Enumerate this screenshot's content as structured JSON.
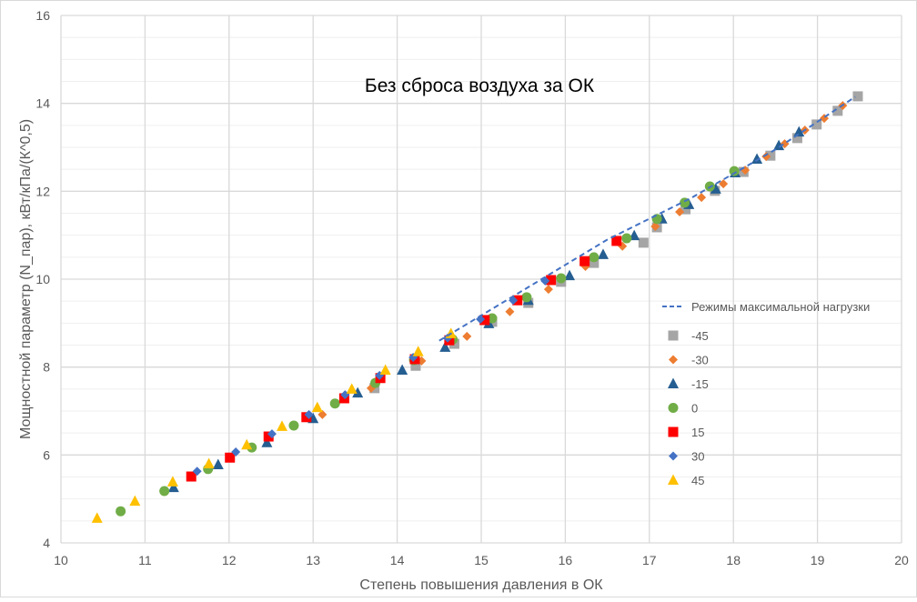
{
  "chart_data": {
    "type": "scatter",
    "title": "Без сброса воздуха за ОК",
    "xlabel": "Степень повышения давления в ОК",
    "ylabel": "Мощностной параметр (N_пар), кВт/кПа/(К^0,5)",
    "xlim": [
      10,
      20
    ],
    "ylim": [
      4,
      16
    ],
    "x_ticks": [
      "10",
      "11",
      "12",
      "13",
      "14",
      "15",
      "16",
      "17",
      "18",
      "19",
      "20"
    ],
    "y_ticks": [
      "4",
      "6",
      "8",
      "10",
      "12",
      "14",
      "16"
    ],
    "grid": {
      "major": true,
      "minor_horizontal": true
    },
    "legend_position": "right",
    "line_series": {
      "name": "Режимы максимальной нагрузки",
      "color": "#4472C4",
      "style": "dashed",
      "points": [
        [
          14.5,
          8.6
        ],
        [
          15.5,
          9.75
        ],
        [
          16.5,
          10.9
        ],
        [
          17.5,
          11.85
        ],
        [
          18.5,
          12.95
        ],
        [
          19.45,
          14.15
        ]
      ]
    },
    "series": [
      {
        "name": "-45",
        "marker": "square",
        "color": "#A5A5A5",
        "points": [
          [
            13.73,
            7.52
          ],
          [
            14.22,
            8.03
          ],
          [
            14.68,
            8.53
          ],
          [
            15.13,
            9.03
          ],
          [
            15.56,
            9.46
          ],
          [
            15.95,
            9.94
          ],
          [
            16.34,
            10.37
          ],
          [
            16.93,
            10.83
          ],
          [
            17.09,
            11.18
          ],
          [
            17.43,
            11.59
          ],
          [
            17.78,
            12.01
          ],
          [
            18.12,
            12.44
          ],
          [
            18.44,
            12.81
          ],
          [
            18.76,
            13.21
          ],
          [
            18.99,
            13.52
          ],
          [
            19.24,
            13.83
          ],
          [
            19.48,
            14.16
          ]
        ]
      },
      {
        "name": "-30",
        "marker": "diamond",
        "color": "#ED7D31",
        "points": [
          [
            13.11,
            6.92
          ],
          [
            13.69,
            7.52
          ],
          [
            14.29,
            8.14
          ],
          [
            14.83,
            8.7
          ],
          [
            15.34,
            9.26
          ],
          [
            15.8,
            9.77
          ],
          [
            16.24,
            10.29
          ],
          [
            16.68,
            10.75
          ],
          [
            17.07,
            11.2
          ],
          [
            17.36,
            11.53
          ],
          [
            17.62,
            11.86
          ],
          [
            17.88,
            12.17
          ],
          [
            18.14,
            12.48
          ],
          [
            18.39,
            12.79
          ],
          [
            18.61,
            13.08
          ],
          [
            18.85,
            13.39
          ],
          [
            19.08,
            13.66
          ],
          [
            19.3,
            13.95
          ]
        ]
      },
      {
        "name": "-15",
        "marker": "triangle",
        "color": "#255E91",
        "points": [
          [
            11.34,
            5.26
          ],
          [
            11.87,
            5.78
          ],
          [
            12.45,
            6.28
          ],
          [
            13.0,
            6.83
          ],
          [
            13.53,
            7.41
          ],
          [
            14.06,
            7.93
          ],
          [
            14.57,
            8.45
          ],
          [
            15.09,
            8.99
          ],
          [
            15.56,
            9.52
          ],
          [
            16.05,
            10.08
          ],
          [
            16.45,
            10.56
          ],
          [
            16.82,
            10.99
          ],
          [
            17.15,
            11.37
          ],
          [
            17.47,
            11.7
          ],
          [
            17.79,
            12.05
          ],
          [
            18.02,
            12.42
          ],
          [
            18.28,
            12.73
          ],
          [
            18.54,
            13.04
          ],
          [
            18.78,
            13.35
          ]
        ]
      },
      {
        "name": "0",
        "marker": "circle",
        "color": "#70AD47",
        "points": [
          [
            10.71,
            4.72
          ],
          [
            11.23,
            5.18
          ],
          [
            11.75,
            5.68
          ],
          [
            12.27,
            6.17
          ],
          [
            12.77,
            6.67
          ],
          [
            13.26,
            7.17
          ],
          [
            13.74,
            7.64
          ],
          [
            14.2,
            8.16
          ],
          [
            14.66,
            8.63
          ],
          [
            15.13,
            9.11
          ],
          [
            15.54,
            9.59
          ],
          [
            15.95,
            10.02
          ],
          [
            16.34,
            10.5
          ],
          [
            16.73,
            10.93
          ],
          [
            17.09,
            11.37
          ],
          [
            17.42,
            11.74
          ],
          [
            17.72,
            12.11
          ],
          [
            18.01,
            12.46
          ]
        ]
      },
      {
        "name": "15",
        "marker": "square",
        "color": "#FF0000",
        "points": [
          [
            11.55,
            5.51
          ],
          [
            12.01,
            5.94
          ],
          [
            12.47,
            6.42
          ],
          [
            12.92,
            6.86
          ],
          [
            13.37,
            7.29
          ],
          [
            13.8,
            7.75
          ],
          [
            14.21,
            8.18
          ],
          [
            14.62,
            8.61
          ],
          [
            15.04,
            9.07
          ],
          [
            15.43,
            9.52
          ],
          [
            15.83,
            9.98
          ],
          [
            16.23,
            10.41
          ],
          [
            16.61,
            10.87
          ]
        ]
      },
      {
        "name": "30",
        "marker": "diamond",
        "color": "#4472C4",
        "points": [
          [
            11.62,
            5.63
          ],
          [
            12.08,
            6.07
          ],
          [
            12.51,
            6.48
          ],
          [
            12.95,
            6.92
          ],
          [
            13.38,
            7.37
          ],
          [
            13.79,
            7.81
          ],
          [
            14.19,
            8.22
          ],
          [
            14.6,
            8.66
          ],
          [
            14.99,
            9.09
          ],
          [
            15.38,
            9.52
          ],
          [
            15.76,
            9.96
          ]
        ]
      },
      {
        "name": "45",
        "marker": "triangle",
        "color": "#FFC000",
        "points": [
          [
            10.43,
            4.56
          ],
          [
            10.88,
            4.95
          ],
          [
            11.33,
            5.39
          ],
          [
            11.76,
            5.8
          ],
          [
            12.21,
            6.23
          ],
          [
            12.63,
            6.65
          ],
          [
            13.05,
            7.08
          ],
          [
            13.46,
            7.5
          ],
          [
            13.86,
            7.93
          ],
          [
            14.25,
            8.35
          ],
          [
            14.64,
            8.76
          ]
        ]
      }
    ]
  }
}
